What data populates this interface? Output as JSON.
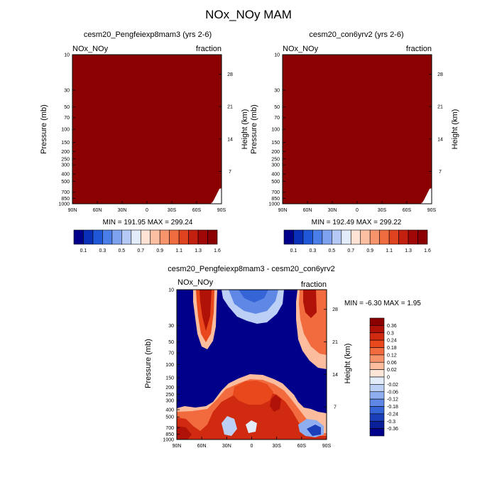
{
  "page": {
    "title": "NOx_NOy MAM"
  },
  "chart_data": [
    {
      "type": "heatmap",
      "title": "cesm20_Pengfeiexp8mam3 (yrs 2-6)",
      "left_string": "NOx_NOy",
      "right_string": "fraction",
      "xlabel": "",
      "ylabel": "Pressure (mb)",
      "ylabel_right": "Height (km)",
      "x_ticks": [
        "90N",
        "60N",
        "30N",
        "0",
        "30S",
        "60S",
        "90S"
      ],
      "y_ticks": [
        "10",
        "30",
        "50",
        "70",
        "100",
        "150",
        "200",
        "250",
        "300",
        "400",
        "500",
        "700",
        "850",
        "1000"
      ],
      "y_ticks_right": [
        "28",
        "21",
        "14",
        "7"
      ],
      "min_max_text": "MIN = 191.95  MAX = 299.24",
      "min": 191.95,
      "max": 299.24,
      "fill_color": "#8b0000"
    },
    {
      "type": "heatmap",
      "title": "cesm20_con6yrv2 (yrs 2-6)",
      "left_string": "NOx_NOy",
      "right_string": "fraction",
      "xlabel": "",
      "ylabel": "Pressure (mb)",
      "ylabel_right": "Height (km)",
      "x_ticks": [
        "90N",
        "60N",
        "30N",
        "0",
        "30S",
        "60S",
        "90S"
      ],
      "y_ticks": [
        "10",
        "30",
        "50",
        "70",
        "100",
        "150",
        "200",
        "250",
        "300",
        "400",
        "500",
        "700",
        "850",
        "1000"
      ],
      "y_ticks_right": [
        "28",
        "21",
        "14",
        "7"
      ],
      "min_max_text": "MIN = 192.49  MAX = 299.22",
      "min": 192.49,
      "max": 299.22,
      "fill_color": "#8b0000"
    },
    {
      "type": "heatmap",
      "title": "cesm20_Pengfeiexp8mam3 - cesm20_con6yrv2",
      "left_string": "NOx_NOy",
      "right_string": "fraction",
      "xlabel": "",
      "ylabel": "Pressure (mb)",
      "ylabel_right": "Height (km)",
      "x_ticks": [
        "90N",
        "60N",
        "30N",
        "0",
        "30S",
        "60S",
        "90S"
      ],
      "y_ticks": [
        "10",
        "30",
        "50",
        "70",
        "100",
        "150",
        "200",
        "250",
        "300",
        "400",
        "500",
        "700",
        "850",
        "1000"
      ],
      "y_ticks_right": [
        "28",
        "21",
        "14",
        "7"
      ],
      "min_max_text": "MIN =  -6.30  MAX =   1.95",
      "min": -6.3,
      "max": 1.95
    }
  ],
  "colorbar_top": {
    "labels": [
      "0.1",
      "0.3",
      "0.5",
      "0.7",
      "0.9",
      "1.1",
      "1.3",
      "1.6"
    ],
    "colors": [
      "#00008b",
      "#0a2fb8",
      "#1f57d8",
      "#4a7ee8",
      "#7ea2f0",
      "#b4c9f5",
      "#e3ecfb",
      "#ffe4d6",
      "#fdbfa1",
      "#f7946c",
      "#ef6b40",
      "#e0431f",
      "#c42010",
      "#a00808",
      "#8b0000"
    ]
  },
  "colorbar_diff": {
    "labels": [
      "0.36",
      "0.3",
      "0.24",
      "0.18",
      "0.12",
      "0.06",
      "0.02",
      "0",
      "-0.02",
      "-0.06",
      "-0.12",
      "-0.18",
      "-0.24",
      "-0.3",
      "-0.36"
    ],
    "colors": [
      "#8b0000",
      "#b01208",
      "#d02a10",
      "#e8481c",
      "#f26b3e",
      "#f7936b",
      "#fbbd9e",
      "#fde6d8",
      "#e3ecfb",
      "#bcd0f6",
      "#8eaef0",
      "#5f88e6",
      "#3464d6",
      "#1a3fb8",
      "#0a1f9a",
      "#00008b"
    ]
  }
}
